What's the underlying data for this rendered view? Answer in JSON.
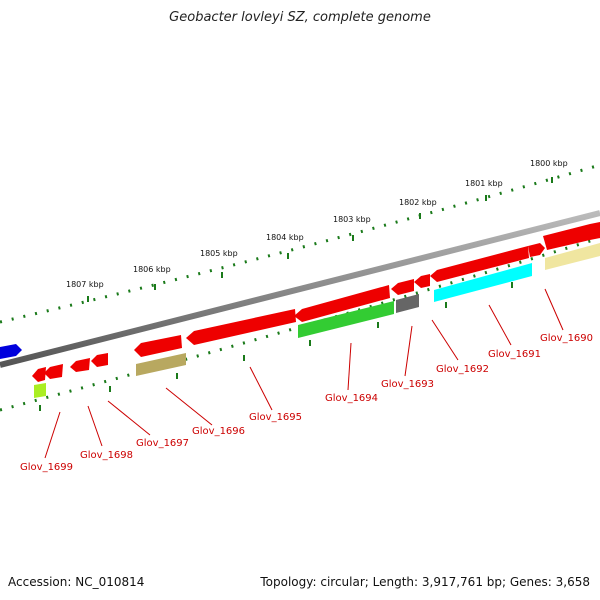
{
  "title": "Geobacter lovleyi SZ, complete genome",
  "footer": {
    "accession": "Accession: NC_010814",
    "summary": "Topology: circular; Length: 3,917,761 bp; Genes: 3,658"
  },
  "scale_labels": [
    "1807 kbp",
    "1806 kbp",
    "1805 kbp",
    "1804 kbp",
    "1803 kbp",
    "1802 kbp",
    "1801 kbp",
    "1800 kbp"
  ],
  "gene_labels": [
    "Glov_1699",
    "Glov_1698",
    "Glov_1697",
    "Glov_1696",
    "Glov_1695",
    "Glov_1694",
    "Glov_1693",
    "Glov_1692",
    "Glov_1691",
    "Glov_1690"
  ],
  "colors": {
    "gene_red": "#ee0000",
    "gene_green": "#33cc33",
    "gene_cyan": "#00ffff",
    "gene_khaki": "#b8a860",
    "gene_pale_yellow": "#f0e6a0",
    "gene_gray": "#666666",
    "gene_blue": "#0000dd",
    "gene_lime": "#aaee22",
    "tick_green": "#1a7a1a",
    "backbone_gray": "#888888",
    "label_red": "#cc0000"
  }
}
